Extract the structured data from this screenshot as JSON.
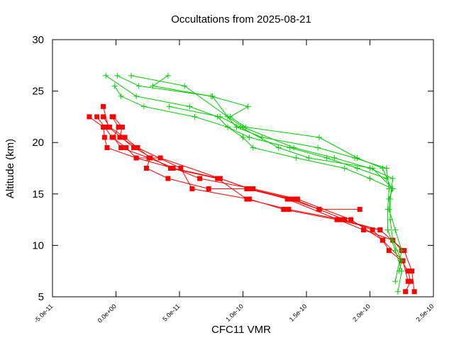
{
  "chart_data": {
    "type": "line",
    "title": "Occultations from 2025-08-21",
    "xlabel": "CFC11 VMR",
    "ylabel": "Altitude (km)",
    "xlim": [
      -5e-11,
      2.5e-10
    ],
    "ylim": [
      5,
      30
    ],
    "x_ticks": [
      -5e-11,
      0,
      5e-11,
      1e-10,
      1.5e-10,
      2e-10,
      2.5e-10
    ],
    "x_tick_labels": [
      "-5.0e-11",
      "0.0e+00",
      "5.0e-11",
      "1.0e-10",
      "1.5e-10",
      "2.0e-10",
      "2.5e-10"
    ],
    "y_ticks": [
      5,
      10,
      15,
      20,
      25,
      30
    ],
    "y_tick_labels": [
      "5",
      "10",
      "15",
      "20",
      "25",
      "30"
    ],
    "grid": false,
    "legend": "none",
    "series": [
      {
        "marker": "square",
        "color": "#ff0000",
        "points": [
          [
            2.28e-10,
            5.5
          ],
          [
            2.32e-10,
            6.5
          ],
          [
            2.3e-10,
            7.5
          ],
          [
            2.25e-10,
            8.5
          ],
          [
            2.15e-10,
            9.5
          ],
          [
            2.1e-10,
            10.5
          ],
          [
            2.02e-10,
            11.5
          ],
          [
            1.8e-10,
            12.5
          ],
          [
            1.6e-10,
            13.5
          ],
          [
            1.4e-10,
            14.5
          ],
          [
            1.05e-10,
            15.5
          ],
          [
            8.2e-11,
            16.5
          ],
          [
            4.5e-11,
            17.5
          ],
          [
            1.6e-11,
            18.5
          ],
          [
            8e-12,
            19.5
          ],
          [
            -3e-12,
            20.5
          ],
          [
            -9e-12,
            21.5
          ],
          [
            -1.5e-11,
            22.5
          ]
        ]
      },
      {
        "marker": "square",
        "color": "#ff0000",
        "points": [
          [
            2.35e-10,
            5.5
          ],
          [
            2.33e-10,
            7.5
          ],
          [
            2.27e-10,
            9.5
          ],
          [
            2.08e-10,
            11.5
          ],
          [
            1.78e-10,
            12.5
          ],
          [
            1.36e-10,
            13.5
          ],
          [
            1.03e-10,
            14.5
          ],
          [
            8e-11,
            16.5
          ],
          [
            4.3e-11,
            17.5
          ],
          [
            1.4e-11,
            19.5
          ],
          [
            -6e-12,
            21.5
          ],
          [
            -1e-11,
            23.5
          ]
        ]
      },
      {
        "marker": "square",
        "color": "#ff0000",
        "points": [
          [
            2.3e-10,
            6.5
          ],
          [
            2.26e-10,
            8.5
          ],
          [
            2.1e-10,
            10.5
          ],
          [
            1.85e-10,
            12.5
          ],
          [
            1.43e-10,
            14.5
          ],
          [
            1.08e-10,
            15.5
          ],
          [
            6.6e-11,
            16.5
          ],
          [
            2.6e-11,
            18.5
          ],
          [
            4e-12,
            19.5
          ],
          [
            -2e-12,
            20.5
          ],
          [
            2e-12,
            21.5
          ],
          [
            -3e-12,
            22.5
          ]
        ]
      },
      {
        "marker": "square",
        "color": "#ff0000",
        "points": [
          [
            1.92e-10,
            13.5
          ],
          [
            1.6e-10,
            13.5
          ],
          [
            1.37e-10,
            14.5
          ],
          [
            1.03e-10,
            15.5
          ],
          [
            7.3e-11,
            15.5
          ],
          [
            4.1e-11,
            16.5
          ],
          [
            2.4e-11,
            17.5
          ],
          [
            2.7e-11,
            18.5
          ],
          [
            1.7e-11,
            19.5
          ],
          [
            7e-12,
            20.5
          ],
          [
            -5e-12,
            21.5
          ],
          [
            -1e-11,
            22.5
          ]
        ]
      },
      {
        "marker": "square",
        "color": "#ff0000",
        "points": [
          [
            2.08e-10,
            11.5
          ],
          [
            1.74e-10,
            12.5
          ],
          [
            1.32e-10,
            13.5
          ],
          [
            1.05e-10,
            14.5
          ],
          [
            6e-11,
            15.5
          ],
          [
            5.1e-11,
            17.5
          ],
          [
            1.7e-11,
            19.5
          ],
          [
            3e-12,
            20.5
          ],
          [
            5e-12,
            21.5
          ],
          [
            -2e-12,
            22.5
          ]
        ]
      },
      {
        "marker": "square",
        "color": "#ff0000",
        "points": [
          [
            2.25e-10,
            9.5
          ],
          [
            2.18e-10,
            10.5
          ],
          [
            1.95e-10,
            11.5
          ],
          [
            1.75e-10,
            12.5
          ],
          [
            1.35e-10,
            14.5
          ],
          [
            1.05e-10,
            15.5
          ],
          [
            8.2e-11,
            16.5
          ],
          [
            3.5e-11,
            18.5
          ],
          [
            1.6e-11,
            18.5
          ],
          [
            -7e-12,
            19.5
          ],
          [
            -9e-12,
            20.5
          ],
          [
            -1e-11,
            21.5
          ],
          [
            -2.1e-11,
            22.5
          ]
        ]
      },
      {
        "marker": "plus",
        "color": "#00cc00",
        "points": [
          [
            2.22e-10,
            5.5
          ],
          [
            2.25e-10,
            7.5
          ],
          [
            2.2e-10,
            9.5
          ],
          [
            2.14e-10,
            11.5
          ],
          [
            2.14e-10,
            13.5
          ],
          [
            2.15e-10,
            15.5
          ],
          [
            2.13e-10,
            17.5
          ],
          [
            1.88e-10,
            18.5
          ],
          [
            1.59e-10,
            19.5
          ],
          [
            1.15e-10,
            20.5
          ],
          [
            9.5e-11,
            21.5
          ],
          [
            8.8e-11,
            22.5
          ],
          [
            7.6e-11,
            24.5
          ],
          [
            1.8e-11,
            25.5
          ],
          [
            1e-12,
            26.5
          ]
        ]
      },
      {
        "marker": "plus",
        "color": "#00cc00",
        "points": [
          [
            2.23e-10,
            7.5
          ],
          [
            2.25e-10,
            8.5
          ],
          [
            2.18e-10,
            10.5
          ],
          [
            2.16e-10,
            12.5
          ],
          [
            2.16e-10,
            14.5
          ],
          [
            2.18e-10,
            16.5
          ],
          [
            2e-10,
            17.5
          ],
          [
            1.72e-10,
            18.5
          ],
          [
            1.4e-10,
            19.5
          ],
          [
            1e-10,
            21.5
          ],
          [
            8.8e-11,
            22.5
          ],
          [
            5.4e-11,
            25.5
          ],
          [
            1.2e-11,
            26.5
          ]
        ]
      },
      {
        "marker": "plus",
        "color": "#00cc00",
        "points": [
          [
            2.2e-10,
            6.5
          ],
          [
            2.25e-10,
            9.5
          ],
          [
            2.2e-10,
            11.5
          ],
          [
            2.15e-10,
            13.5
          ],
          [
            2.17e-10,
            15.5
          ],
          [
            2.1e-10,
            17.5
          ],
          [
            1.9e-10,
            18.5
          ],
          [
            1.6e-10,
            20.5
          ],
          [
            1.02e-10,
            21.5
          ],
          [
            9e-11,
            22.5
          ],
          [
            1.04e-10,
            23.5
          ],
          [
            7.5e-11,
            24.5
          ],
          [
            2.9e-11,
            25.5
          ],
          [
            4.1e-11,
            26.5
          ]
        ]
      },
      {
        "marker": "plus",
        "color": "#00cc00",
        "points": [
          [
            2.13e-10,
            16.5
          ],
          [
            1.9e-10,
            17.5
          ],
          [
            1.66e-10,
            18.5
          ],
          [
            1.37e-10,
            19.5
          ],
          [
            1.05e-10,
            20.5
          ],
          [
            8.8e-11,
            21.5
          ],
          [
            8e-11,
            22.5
          ],
          [
            5.8e-11,
            23.5
          ],
          [
            1.6e-11,
            24.5
          ],
          [
            -8e-12,
            26.5
          ]
        ]
      },
      {
        "marker": "plus",
        "color": "#00cc00",
        "points": [
          [
            2.18e-10,
            15.5
          ],
          [
            2e-10,
            16.5
          ],
          [
            1.8e-10,
            17.5
          ],
          [
            1.42e-10,
            18.5
          ],
          [
            1.08e-10,
            19.5
          ],
          [
            1e-10,
            20.5
          ],
          [
            8.8e-11,
            21.5
          ],
          [
            6.2e-11,
            22.5
          ],
          [
            2.2e-11,
            23.5
          ],
          [
            4e-12,
            24.5
          ],
          [
            -1e-12,
            25.5
          ]
        ]
      },
      {
        "marker": "plus",
        "color": "#00cc00",
        "points": [
          [
            2.15e-10,
            14.5
          ],
          [
            2.18e-10,
            15.5
          ],
          [
            2.02e-10,
            17.5
          ],
          [
            1.52e-10,
            18.5
          ],
          [
            1.28e-10,
            19.5
          ],
          [
            9.8e-11,
            21.5
          ],
          [
            8.2e-11,
            22.5
          ],
          [
            4.2e-11,
            23.5
          ]
        ]
      }
    ]
  }
}
